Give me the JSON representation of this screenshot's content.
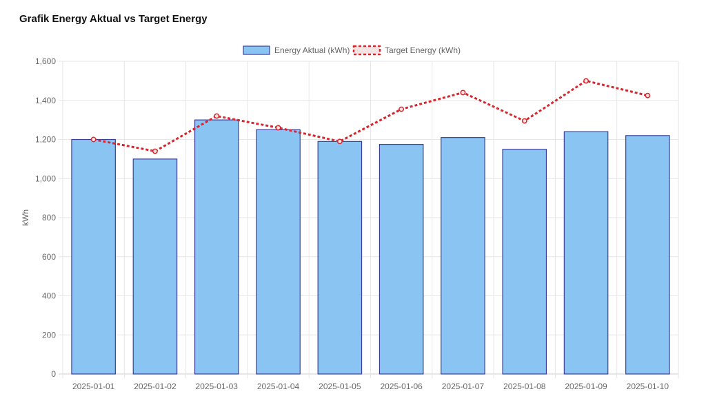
{
  "chart_data": {
    "type": "bar",
    "title": "Grafik Energy Aktual vs Target Energy",
    "xlabel": "",
    "ylabel": "kWh",
    "ylim": [
      0,
      1600
    ],
    "yticks": [
      "0",
      "200",
      "400",
      "600",
      "800",
      "1,000",
      "1,200",
      "1,400",
      "1,600"
    ],
    "ytick_values": [
      0,
      200,
      400,
      600,
      800,
      1000,
      1200,
      1400,
      1600
    ],
    "grid": true,
    "legend_position": "top-center",
    "categories": [
      "2025-01-01",
      "2025-01-02",
      "2025-01-03",
      "2025-01-04",
      "2025-01-05",
      "2025-01-06",
      "2025-01-07",
      "2025-01-08",
      "2025-01-09",
      "2025-01-10"
    ],
    "series": [
      {
        "name": "Energy Aktual (kWh)",
        "type": "bar",
        "values": [
          1200,
          1100,
          1300,
          1250,
          1190,
          1175,
          1210,
          1150,
          1240,
          1220
        ],
        "color": "#8AC4F3",
        "border_color": "#3B3F98"
      },
      {
        "name": "Target Energy (kWh)",
        "type": "line",
        "style": "dashed",
        "values": [
          1200,
          1140,
          1320,
          1260,
          1190,
          1355,
          1440,
          1295,
          1500,
          1425
        ],
        "color": "#D7262D"
      }
    ]
  }
}
